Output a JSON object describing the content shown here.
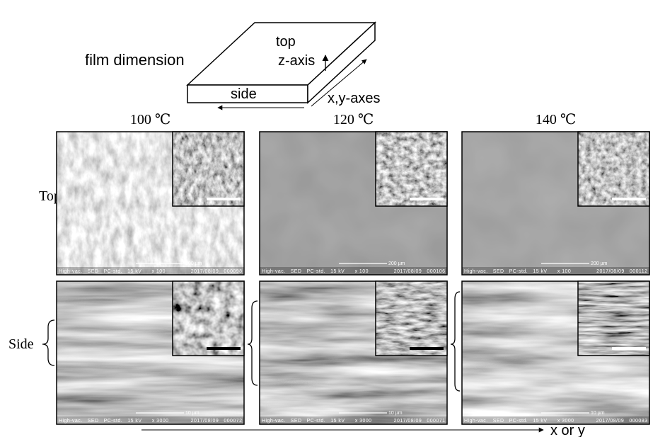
{
  "diagram": {
    "label": "film dimension",
    "top": "top",
    "z_axis": "z-axis",
    "side": "side",
    "xy_axes": "x,y-axes"
  },
  "columns": [
    "100 ℃",
    "120 ℃",
    "140 ℃"
  ],
  "rows": [
    "Top",
    "Side"
  ],
  "panels": [
    [
      {
        "scale": "200 µm",
        "info": "High-vac.   SED   PC-std.   15 kV      x 100               2017/08/09   000098"
      },
      {
        "scale": "200 µm",
        "info": "High-vac.   SED   PC-std.   15 kV      x 100               2017/08/09   000106"
      },
      {
        "scale": "200 µm",
        "info": "High-vac.   SED   PC-std.   15 kV      x 100               2017/08/09   000112"
      }
    ],
    [
      {
        "scale": "10 µm",
        "info": "High-vac.   SED   PC-std.   15 kV      x 3000             2017/08/09   000072"
      },
      {
        "scale": "10 µm",
        "info": "High-vac.   SED   PC-std.   15 kV      x 3000             2017/08/09   000071"
      },
      {
        "scale": "10 µm",
        "info": "High-vac.   SED   PC-std.   15 kV      x 3000             2017/08/09   000083"
      }
    ]
  ],
  "axis_label": "x or y"
}
